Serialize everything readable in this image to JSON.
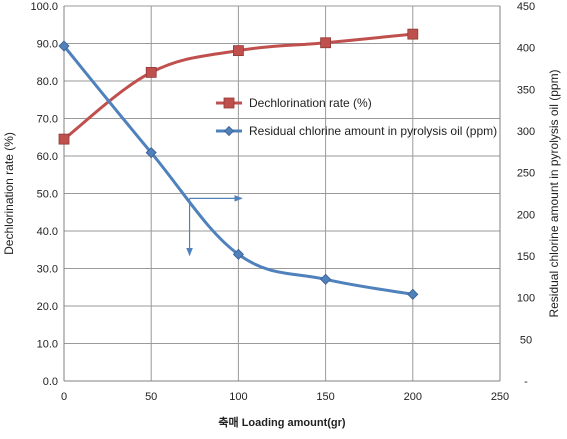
{
  "chart_data": {
    "type": "line",
    "title": "",
    "xlabel": "축매 Loading amount(gr)",
    "ylabel_left": "Dechlorination rate (%)",
    "ylabel_right": "Residual chlorine amount in pyrolysis oil (ppm)",
    "xlim": [
      0,
      250
    ],
    "ylim_left": [
      0,
      100
    ],
    "ylim_right": [
      0,
      450
    ],
    "x_ticks": [
      "0",
      "50",
      "100",
      "150",
      "200",
      "250"
    ],
    "y_ticks_left": [
      "0.0",
      "10.0",
      "20.0",
      "30.0",
      "40.0",
      "50.0",
      "60.0",
      "70.0",
      "80.0",
      "90.0",
      "100.0"
    ],
    "y_ticks_right": [
      "-",
      "50",
      "100",
      "150",
      "200",
      "250",
      "300",
      "350",
      "400",
      "450"
    ],
    "grid": true,
    "legend_position": "center-right",
    "series": [
      {
        "name": "Dechlorination rate (%)",
        "axis": "left",
        "color": "#c0504d",
        "marker": "square",
        "x": [
          0,
          50,
          100,
          150,
          200
        ],
        "values": [
          64.5,
          82.3,
          88.1,
          90.2,
          92.5
        ]
      },
      {
        "name": "Residual chlorine amount in pyrolysis oil (ppm)",
        "axis": "right",
        "color": "#4f81bd",
        "marker": "diamond",
        "x": [
          0,
          50,
          100,
          150,
          200
        ],
        "values": [
          402,
          274,
          152,
          122,
          104
        ]
      }
    ],
    "annotations": [
      {
        "type": "arrow",
        "color": "#4f81bd",
        "from": [
          72,
          48.7
        ],
        "to": [
          102,
          48.7
        ]
      },
      {
        "type": "arrow",
        "color": "#4f81bd",
        "from": [
          72,
          48.7
        ],
        "to": [
          72,
          33.5
        ]
      }
    ]
  }
}
